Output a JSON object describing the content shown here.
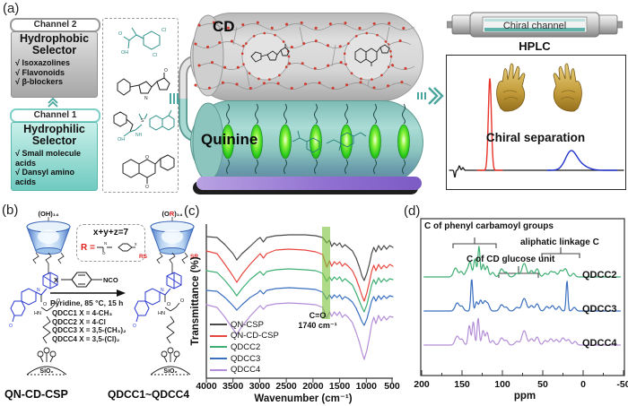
{
  "labels": {
    "a": "(a)",
    "b": "(b)",
    "c": "(c)",
    "d": "(d)"
  },
  "panel_a": {
    "channel2": {
      "title": "Channel 2",
      "selector_line1": "Hydrophobic",
      "selector_line2": "Selector",
      "items": [
        "√ Isoxazolines",
        "√ Flavonoids",
        "√ β-blockers"
      ]
    },
    "channel1": {
      "title": "Channel 1",
      "selector_line1": "Hydrophilic",
      "selector_line2": "Selector",
      "items": [
        "√ Small molecule acids",
        "√ Dansyl amino acids"
      ]
    },
    "cd_label": "CD",
    "quinine_label": "Quinine",
    "hplc_label": "HPLC",
    "chiral_channel_label": "Chiral channel",
    "separation_caption": "Chiral separation"
  },
  "atoms": {
    "cl": "Cl",
    "oh": "OH",
    "o": "O",
    "n": "N",
    "nh": "NH",
    "s": "S",
    "x": "x"
  },
  "panel_b": {
    "left_cap": "(OH)₁₄",
    "right_cap_pre": "(O",
    "right_cap_r": "R",
    "right_cap_post": ")₁₄",
    "sum_formula": "x+y+z=7",
    "r_label": "R =",
    "reagent_x": "X",
    "reagent_nco": "NCO",
    "conditions": "Pyridine, 85 °C, 15 h",
    "variants": [
      "QDCC1 X = 4-CH₃",
      "QDCC2 X = 4-Cl",
      "QDCC3 X = 3,5-(CH₃)₂",
      "QDCC4 X = 3,5-(Cl)₂"
    ],
    "rs_left": "RS",
    "rs_right": "SR",
    "hn": "HN",
    "o_label": "O",
    "sio2": "SiO₂",
    "left_name": "QN-CD-CSP",
    "right_name": "QDCC1~QDCC4"
  },
  "panel_c": {
    "ylabel": "Transmittance (%)",
    "xlabel": "Wavenumber (cm⁻¹)",
    "xticks": [
      "4000",
      "3500",
      "3000",
      "2500",
      "2000",
      "1500",
      "1000",
      "500"
    ],
    "annotation_line1": "C=O",
    "annotation_line2": "1740 cm⁻¹",
    "legend": [
      "QN-CSP",
      "QN-CD-CSP",
      "QDCC2",
      "QDCC3",
      "QDCC4"
    ]
  },
  "panel_d": {
    "xlabel": "ppm",
    "xticks": [
      "200",
      "150",
      "100",
      "50",
      "0",
      "-50"
    ],
    "ann_phenyl": "C of phenyl carbamoyl  groups",
    "ann_aliphatic": "aliphatic linkage C",
    "ann_glucose": "C of CD glucose unit",
    "trace_labels": [
      "QDCC2",
      "QDCC3",
      "QDCC4"
    ]
  },
  "chart_data": [
    {
      "type": "line",
      "panel": "c",
      "xlabel": "Wavenumber (cm⁻¹)",
      "ylabel": "Transmittance (%)",
      "x_range": [
        4000,
        500
      ],
      "x_ticks": [
        4000,
        3500,
        3000,
        2500,
        2000,
        1500,
        1000,
        500
      ],
      "highlight_band": {
        "center_cm": 1740,
        "label": "C=O"
      },
      "xmap": {
        "domain": [
          4000,
          500
        ],
        "range": [
          2,
          210
        ]
      },
      "x": [
        4000,
        3800,
        3650,
        3500,
        3430,
        3330,
        3180,
        3040,
        2990,
        2930,
        2870,
        2700,
        2450,
        2150,
        1950,
        1820,
        1740,
        1690,
        1650,
        1600,
        1550,
        1500,
        1450,
        1400,
        1340,
        1260,
        1190,
        1130,
        1080,
        1040,
        990,
        940,
        900,
        860,
        820,
        770,
        720,
        670,
        620,
        560,
        500
      ],
      "curves": [
        {
          "name": "QN-CSP",
          "color": "#4a4a4a",
          "w": 1.2,
          "y": [
            14,
            15,
            23,
            33,
            40,
            33,
            25,
            17,
            15,
            20,
            15,
            13,
            12,
            12,
            13,
            15,
            21,
            18,
            25,
            21,
            24,
            21,
            26,
            23,
            26,
            30,
            38,
            48,
            58,
            63,
            55,
            44,
            33,
            26,
            31,
            24,
            29,
            24,
            28,
            24,
            26
          ]
        },
        {
          "name": "QN-CD-CSP",
          "color": "#e8473f",
          "w": 1.2,
          "y": [
            30,
            33,
            45,
            58,
            65,
            56,
            45,
            36,
            33,
            38,
            33,
            29,
            28,
            29,
            31,
            34,
            48,
            41,
            47,
            42,
            45,
            42,
            47,
            44,
            47,
            52,
            61,
            71,
            80,
            86,
            77,
            64,
            53,
            46,
            52,
            45,
            50,
            46,
            49,
            45,
            47
          ]
        },
        {
          "name": "QDCC2",
          "color": "#3fae73",
          "w": 1.2,
          "y": [
            52,
            54,
            63,
            74,
            80,
            72,
            62,
            55,
            53,
            57,
            53,
            51,
            50,
            51,
            52,
            55,
            64,
            59,
            63,
            59,
            62,
            59,
            64,
            61,
            64,
            68,
            77,
            86,
            93,
            98,
            90,
            78,
            68,
            62,
            67,
            60,
            65,
            61,
            64,
            61,
            62
          ]
        },
        {
          "name": "QDCC3",
          "color": "#3a6fc0",
          "w": 1.2,
          "y": [
            74,
            75,
            82,
            91,
            96,
            90,
            82,
            77,
            74,
            78,
            74,
            72,
            71,
            72,
            73,
            76,
            84,
            79,
            83,
            79,
            82,
            79,
            84,
            81,
            83,
            87,
            94,
            102,
            109,
            113,
            106,
            95,
            86,
            81,
            86,
            80,
            84,
            80,
            83,
            80,
            81
          ]
        },
        {
          "name": "QDCC4",
          "color": "#b48ed8",
          "w": 1.2,
          "y": [
            90,
            93,
            104,
            117,
            123,
            114,
            103,
            94,
            91,
            95,
            91,
            89,
            88,
            89,
            90,
            93,
            105,
            98,
            103,
            98,
            102,
            98,
            104,
            101,
            104,
            110,
            121,
            132,
            143,
            151,
            141,
            126,
            112,
            104,
            111,
            102,
            108,
            103,
            107,
            103,
            104
          ]
        }
      ]
    },
    {
      "type": "line",
      "panel": "d",
      "xlabel": "ppm",
      "x_range": [
        200,
        -50
      ],
      "x_ticks": [
        200,
        150,
        100,
        50,
        0,
        -50
      ],
      "xmap": {
        "domain": [
          200,
          -50
        ],
        "range": [
          2,
          227
        ]
      },
      "curves": [
        {
          "name": "QDCC2",
          "color": "#3fae73",
          "w": 1.2,
          "base": 66,
          "range": [
            197,
            -46
          ],
          "peaks": [
            [
              158,
              10,
              2.5
            ],
            [
              151,
              6,
              2
            ],
            [
              144,
              7,
              2
            ],
            [
              140,
              16,
              1.8
            ],
            [
              134,
              20,
              1.6
            ],
            [
              129,
              34,
              1.3
            ],
            [
              124,
              14,
              1.5
            ],
            [
              119,
              12,
              1.8
            ],
            [
              112,
              5,
              2
            ],
            [
              101,
              9,
              2.4
            ],
            [
              95,
              5,
              2
            ],
            [
              82,
              4,
              2.5
            ],
            [
              73,
              15,
              2.8
            ],
            [
              64,
              7,
              2.2
            ],
            [
              57,
              9,
              2.2
            ],
            [
              47,
              4,
              2.2
            ],
            [
              40,
              6,
              2.2
            ],
            [
              35,
              5,
              2
            ],
            [
              28,
              7,
              2.2
            ],
            [
              22,
              9,
              2.4
            ],
            [
              12,
              4,
              2
            ]
          ]
        },
        {
          "name": "QDCC3",
          "color": "#3a6fc0",
          "w": 1.2,
          "base": 104,
          "range": [
            197,
            -46
          ],
          "peaks": [
            [
              156,
              9,
              2.5
            ],
            [
              150,
              5,
              2
            ],
            [
              138,
              36,
              1.2
            ],
            [
              132,
              10,
              1.6
            ],
            [
              127,
              12,
              1.8
            ],
            [
              122,
              10,
              1.8
            ],
            [
              118,
              8,
              2
            ],
            [
              101,
              7,
              2.4
            ],
            [
              95,
              4,
              2
            ],
            [
              82,
              4,
              2.5
            ],
            [
              73,
              14,
              2.8
            ],
            [
              64,
              6,
              2.2
            ],
            [
              57,
              8,
              2.2
            ],
            [
              45,
              5,
              2.2
            ],
            [
              38,
              6,
              2.2
            ],
            [
              30,
              5,
              2
            ],
            [
              20,
              34,
              1.1
            ],
            [
              11,
              4,
              2
            ]
          ]
        },
        {
          "name": "QDCC4",
          "color": "#b48ed8",
          "w": 1.2,
          "base": 142,
          "range": [
            197,
            -46
          ],
          "peaks": [
            [
              156,
              10,
              2.5
            ],
            [
              150,
              6,
              2
            ],
            [
              141,
              22,
              1.5
            ],
            [
              136,
              26,
              1.4
            ],
            [
              130,
              30,
              1.3
            ],
            [
              124,
              16,
              1.6
            ],
            [
              119,
              14,
              1.8
            ],
            [
              112,
              5,
              2
            ],
            [
              101,
              8,
              2.4
            ],
            [
              95,
              5,
              2
            ],
            [
              82,
              4,
              2.5
            ],
            [
              73,
              16,
              2.8
            ],
            [
              64,
              7,
              2.2
            ],
            [
              57,
              9,
              2.2
            ],
            [
              47,
              5,
              2.2
            ],
            [
              40,
              7,
              2.4
            ],
            [
              33,
              6,
              2.2
            ],
            [
              25,
              8,
              2.6
            ],
            [
              18,
              6,
              2.2
            ],
            [
              10,
              4,
              2
            ]
          ]
        }
      ]
    },
    {
      "type": "line",
      "panel": "a-chromatogram",
      "curves": [
        {
          "name": "baseline",
          "color": "#1a1a1a",
          "w": 1.3,
          "base": 128,
          "range": [
            3,
            197
          ],
          "peaks": [
            [
              9,
              -8,
              0.7
            ],
            [
              14,
              5,
              0.9
            ],
            [
              18,
              3,
              0.9
            ]
          ]
        },
        {
          "name": "enantiomer-peak-1",
          "color": "#e8342a",
          "w": 1.4,
          "base": 128,
          "range": [
            34,
            62
          ],
          "peaks": [
            [
              48,
              102,
              1.7
            ]
          ]
        },
        {
          "name": "enantiomer-peak-2",
          "color": "#2233cc",
          "w": 1.4,
          "base": 128,
          "range": [
            112,
            190
          ],
          "peaks": [
            [
              138,
              17,
              6
            ],
            [
              146,
              7,
              9
            ]
          ]
        }
      ]
    }
  ]
}
